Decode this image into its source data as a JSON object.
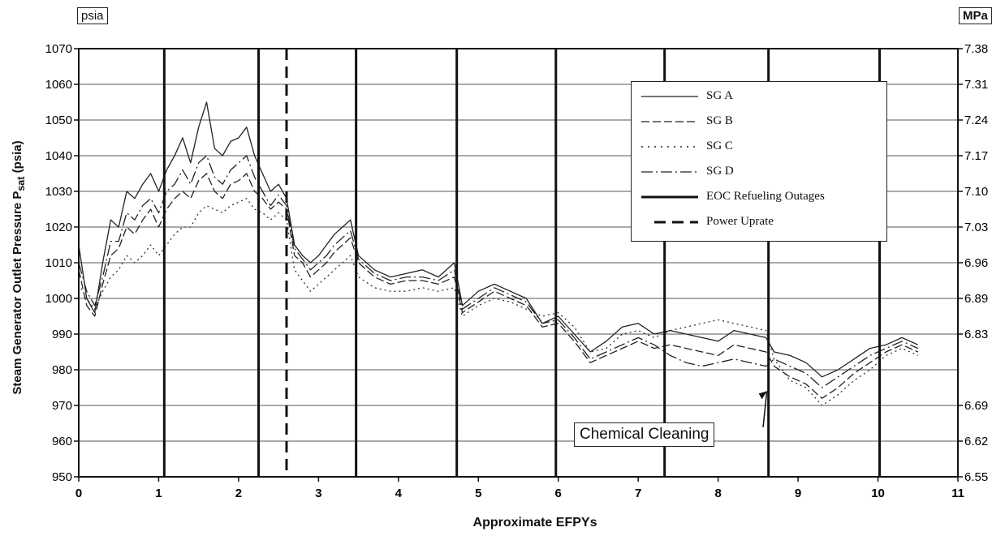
{
  "chart_data": {
    "type": "line",
    "xlabel": "Approximate EFPYs",
    "ylabel": "Steam Generator Outlet Pressure P_sat (psia)",
    "ylabel_parts": {
      "main": "Steam Generator Outlet Pressure P",
      "sub": "sat",
      "tail": " (psia)"
    },
    "left_unit": "psia",
    "right_unit": "MPa",
    "xlim": [
      0,
      11
    ],
    "ylim": [
      950,
      1070
    ],
    "x_ticks": [
      "0",
      "1",
      "2",
      "3",
      "4",
      "5",
      "6",
      "7",
      "8",
      "9",
      "10",
      "11"
    ],
    "y_ticks": [
      "950",
      "960",
      "970",
      "980",
      "990",
      "1000",
      "1010",
      "1020",
      "1030",
      "1040",
      "1050",
      "1060",
      "1070"
    ],
    "right_ticks": [
      {
        "psia": 950,
        "label": "6.55"
      },
      {
        "psia": 960,
        "label": "6.62"
      },
      {
        "psia": 970,
        "label": "6.69"
      },
      {
        "psia": 990,
        "label": "6.83"
      },
      {
        "psia": 1000,
        "label": "6.89"
      },
      {
        "psia": 1010,
        "label": "6.96"
      },
      {
        "psia": 1020,
        "label": "7.03"
      },
      {
        "psia": 1030,
        "label": "7.10"
      },
      {
        "psia": 1040,
        "label": "7.17"
      },
      {
        "psia": 1050,
        "label": "7.24"
      },
      {
        "psia": 1060,
        "label": "7.31"
      },
      {
        "psia": 1070,
        "label": "7.38"
      }
    ],
    "grid": true,
    "legend_position": "top-right",
    "legend": [
      "SG A",
      "SG B",
      "SG C",
      "SG D",
      "EOC Refueling Outages",
      "Power Uprate"
    ],
    "eoc_refueling_outages": [
      1.07,
      2.25,
      3.47,
      4.73,
      5.97,
      7.33,
      8.63,
      10.02
    ],
    "power_uprate": 2.6,
    "annotation": {
      "text": "Chemical Cleaning",
      "x": 8.63,
      "y": 974
    },
    "series": [
      {
        "name": "SG A",
        "color": "#222222",
        "dash": "",
        "x": [
          0,
          0.1,
          0.2,
          0.3,
          0.4,
          0.5,
          0.6,
          0.7,
          0.8,
          0.9,
          1.0,
          1.1,
          1.2,
          1.3,
          1.4,
          1.5,
          1.6,
          1.7,
          1.8,
          1.9,
          2.0,
          2.1,
          2.2,
          2.3,
          2.4,
          2.5,
          2.6,
          2.7,
          2.8,
          2.9,
          3.0,
          3.1,
          3.2,
          3.3,
          3.4,
          3.5,
          3.7,
          3.9,
          4.1,
          4.3,
          4.5,
          4.7,
          4.8,
          5.0,
          5.2,
          5.4,
          5.6,
          5.8,
          6.0,
          6.2,
          6.4,
          6.6,
          6.8,
          7.0,
          7.2,
          7.4,
          7.6,
          7.8,
          8.0,
          8.2,
          8.4,
          8.6,
          8.7,
          8.9,
          9.1,
          9.3,
          9.5,
          9.7,
          9.9,
          10.1,
          10.3,
          10.5
        ],
        "y": [
          1015,
          1000,
          996,
          1010,
          1022,
          1020,
          1030,
          1028,
          1032,
          1035,
          1030,
          1036,
          1040,
          1045,
          1038,
          1048,
          1055,
          1042,
          1040,
          1044,
          1045,
          1048,
          1040,
          1035,
          1030,
          1032,
          1028,
          1015,
          1012,
          1010,
          1012,
          1015,
          1018,
          1020,
          1022,
          1012,
          1008,
          1006,
          1007,
          1008,
          1006,
          1010,
          998,
          1002,
          1004,
          1002,
          1000,
          993,
          995,
          990,
          985,
          988,
          992,
          993,
          990,
          991,
          990,
          989,
          988,
          991,
          990,
          989,
          985,
          984,
          982,
          978,
          980,
          983,
          986,
          987,
          989,
          987
        ]
      },
      {
        "name": "SG B",
        "color": "#222222",
        "dash": "10 4",
        "x": [
          0,
          0.1,
          0.2,
          0.3,
          0.4,
          0.5,
          0.6,
          0.7,
          0.8,
          0.9,
          1.0,
          1.1,
          1.2,
          1.3,
          1.4,
          1.5,
          1.6,
          1.7,
          1.8,
          1.9,
          2.0,
          2.1,
          2.2,
          2.3,
          2.4,
          2.5,
          2.6,
          2.7,
          2.8,
          2.9,
          3.0,
          3.1,
          3.2,
          3.3,
          3.4,
          3.5,
          3.7,
          3.9,
          4.1,
          4.3,
          4.5,
          4.7,
          4.8,
          5.0,
          5.2,
          5.4,
          5.6,
          5.8,
          6.0,
          6.2,
          6.4,
          6.6,
          6.8,
          7.0,
          7.2,
          7.4,
          7.6,
          7.8,
          8.0,
          8.2,
          8.4,
          8.6,
          8.7,
          8.9,
          9.1,
          9.3,
          9.5,
          9.7,
          9.9,
          10.1,
          10.3,
          10.5
        ],
        "y": [
          1008,
          998,
          995,
          1004,
          1012,
          1014,
          1020,
          1018,
          1022,
          1025,
          1020,
          1025,
          1028,
          1030,
          1028,
          1033,
          1035,
          1030,
          1028,
          1032,
          1033,
          1035,
          1030,
          1028,
          1025,
          1027,
          1025,
          1012,
          1010,
          1006,
          1008,
          1010,
          1013,
          1015,
          1017,
          1010,
          1006,
          1004,
          1005,
          1005,
          1004,
          1006,
          996,
          999,
          1002,
          1000,
          998,
          992,
          993,
          988,
          982,
          984,
          986,
          988,
          986,
          987,
          986,
          985,
          984,
          987,
          986,
          985,
          981,
          978,
          976,
          972,
          975,
          979,
          982,
          985,
          987,
          985
        ]
      },
      {
        "name": "SG C",
        "color": "#333333",
        "dash": "2 4",
        "x": [
          0,
          0.1,
          0.2,
          0.3,
          0.4,
          0.5,
          0.6,
          0.7,
          0.8,
          0.9,
          1.0,
          1.1,
          1.2,
          1.3,
          1.4,
          1.5,
          1.6,
          1.7,
          1.8,
          1.9,
          2.0,
          2.1,
          2.2,
          2.3,
          2.4,
          2.5,
          2.6,
          2.7,
          2.8,
          2.9,
          3.0,
          3.1,
          3.2,
          3.3,
          3.4,
          3.5,
          3.7,
          3.9,
          4.1,
          4.3,
          4.5,
          4.7,
          4.8,
          5.0,
          5.2,
          5.4,
          5.6,
          5.8,
          6.0,
          6.2,
          6.4,
          6.6,
          6.8,
          7.0,
          7.2,
          7.4,
          7.6,
          7.8,
          8.0,
          8.2,
          8.4,
          8.6,
          8.7,
          8.9,
          9.1,
          9.3,
          9.5,
          9.7,
          9.9,
          10.1,
          10.3,
          10.5
        ],
        "y": [
          1004,
          1000,
          997,
          1002,
          1006,
          1008,
          1012,
          1010,
          1012,
          1015,
          1012,
          1015,
          1018,
          1020,
          1020,
          1024,
          1026,
          1025,
          1024,
          1026,
          1027,
          1028,
          1025,
          1024,
          1022,
          1024,
          1022,
          1008,
          1005,
          1002,
          1004,
          1006,
          1008,
          1010,
          1012,
          1006,
          1003,
          1002,
          1002,
          1003,
          1002,
          1003,
          995,
          998,
          1000,
          999,
          997,
          995,
          996,
          992,
          985,
          986,
          990,
          991,
          989,
          991,
          992,
          993,
          994,
          993,
          992,
          991,
          983,
          977,
          975,
          970,
          973,
          977,
          980,
          984,
          986,
          984
        ]
      },
      {
        "name": "SG D",
        "color": "#222222",
        "dash": "14 4 2 4",
        "x": [
          0,
          0.1,
          0.2,
          0.3,
          0.4,
          0.5,
          0.6,
          0.7,
          0.8,
          0.9,
          1.0,
          1.1,
          1.2,
          1.3,
          1.4,
          1.5,
          1.6,
          1.7,
          1.8,
          1.9,
          2.0,
          2.1,
          2.2,
          2.3,
          2.4,
          2.5,
          2.6,
          2.7,
          2.8,
          2.9,
          3.0,
          3.1,
          3.2,
          3.3,
          3.4,
          3.5,
          3.7,
          3.9,
          4.1,
          4.3,
          4.5,
          4.7,
          4.8,
          5.0,
          5.2,
          5.4,
          5.6,
          5.8,
          6.0,
          6.2,
          6.4,
          6.6,
          6.8,
          7.0,
          7.2,
          7.4,
          7.6,
          7.8,
          8.0,
          8.2,
          8.4,
          8.6,
          8.7,
          8.9,
          9.1,
          9.3,
          9.5,
          9.7,
          9.9,
          10.1,
          10.3,
          10.5
        ],
        "y": [
          1010,
          1002,
          998,
          1006,
          1016,
          1016,
          1024,
          1022,
          1026,
          1028,
          1024,
          1030,
          1032,
          1036,
          1032,
          1038,
          1040,
          1034,
          1032,
          1036,
          1038,
          1040,
          1034,
          1030,
          1026,
          1029,
          1026,
          1014,
          1011,
          1008,
          1010,
          1012,
          1015,
          1017,
          1019,
          1011,
          1007,
          1005,
          1006,
          1006,
          1005,
          1008,
          997,
          1000,
          1003,
          1001,
          999,
          993,
          994,
          989,
          983,
          985,
          987,
          989,
          987,
          984,
          982,
          981,
          982,
          983,
          982,
          981,
          983,
          981,
          979,
          975,
          978,
          981,
          984,
          986,
          988,
          986
        ]
      }
    ]
  }
}
